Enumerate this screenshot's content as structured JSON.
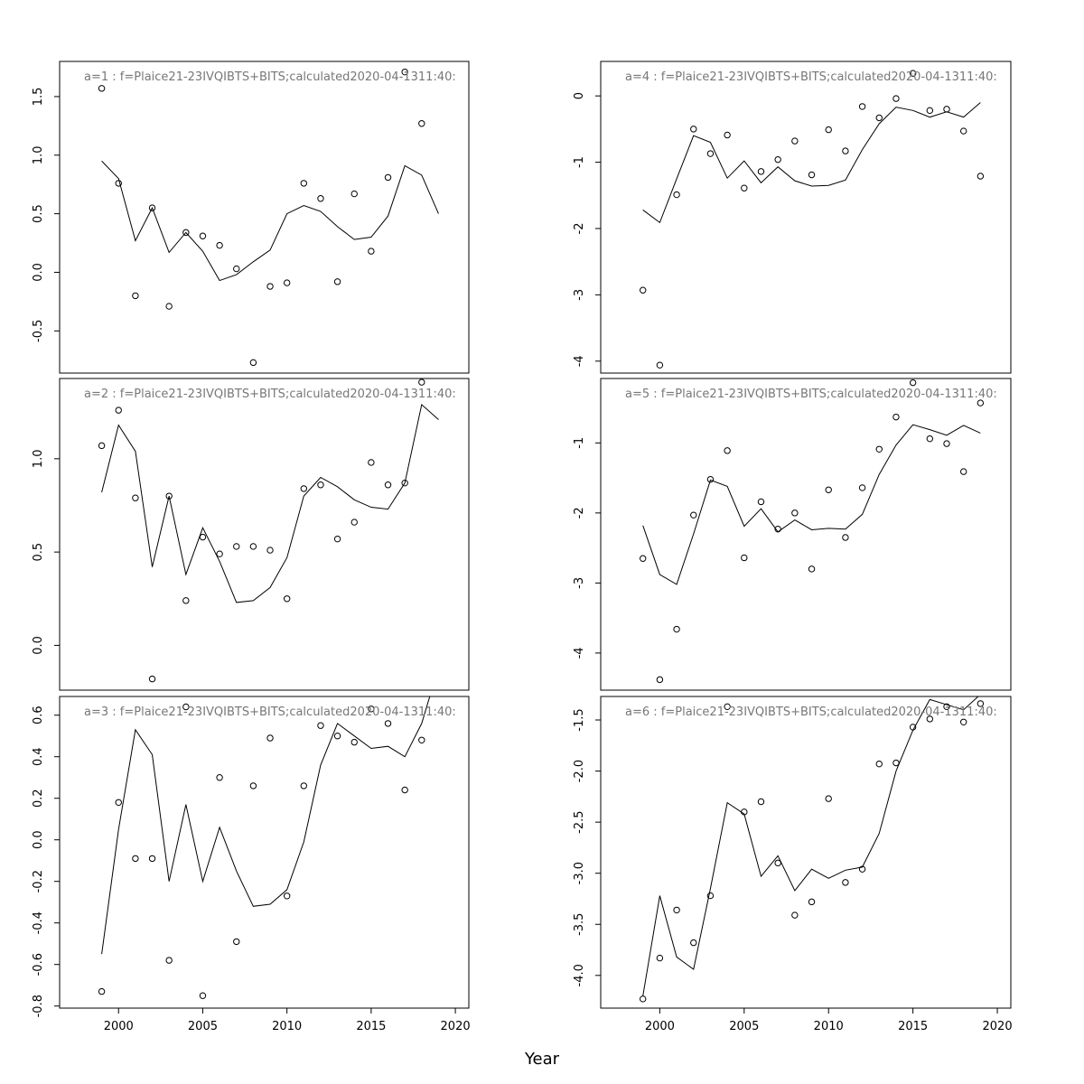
{
  "chart_data": {
    "type": "scatter",
    "xlabel": "Year",
    "xlim": [
      1996.5,
      2020.8
    ],
    "x_ticks": [
      2000,
      2005,
      2010,
      2015,
      2020
    ],
    "years": [
      1999,
      2000,
      2001,
      2002,
      2003,
      2004,
      2005,
      2006,
      2007,
      2008,
      2009,
      2010,
      2011,
      2012,
      2013,
      2014,
      2015,
      2016,
      2017,
      2018,
      2019
    ],
    "panels": [
      {
        "title": "a=1  :  f=Plaice21-23IVQIBTS+BITS;calculated2020-04-1311:40:",
        "ylim": [
          -0.86,
          1.8
        ],
        "y_ticks": [
          -0.5,
          0.0,
          0.5,
          1.0,
          1.5
        ],
        "y_tick_labels": [
          "-0.5",
          "0.0",
          "0.5",
          "1.0",
          "1.5"
        ],
        "points": [
          [
            1999,
            1.57
          ],
          [
            2000,
            0.76
          ],
          [
            2001,
            -0.2
          ],
          [
            2002,
            0.55
          ],
          [
            2003,
            -0.29
          ],
          [
            2004,
            0.34
          ],
          [
            2005,
            0.31
          ],
          [
            2006,
            0.23
          ],
          [
            2007,
            0.03
          ],
          [
            2008,
            -0.77
          ],
          [
            2009,
            -0.12
          ],
          [
            2010,
            -0.09
          ],
          [
            2011,
            0.76
          ],
          [
            2012,
            0.63
          ],
          [
            2013,
            -0.08
          ],
          [
            2014,
            0.67
          ],
          [
            2015,
            0.18
          ],
          [
            2016,
            0.81
          ],
          [
            2017,
            1.71
          ],
          [
            2018,
            1.27
          ]
        ],
        "line": [
          [
            1999,
            0.95
          ],
          [
            2000,
            0.8
          ],
          [
            2001,
            0.27
          ],
          [
            2002,
            0.55
          ],
          [
            2003,
            0.17
          ],
          [
            2004,
            0.34
          ],
          [
            2005,
            0.18
          ],
          [
            2006,
            -0.07
          ],
          [
            2007,
            -0.02
          ],
          [
            2008,
            0.09
          ],
          [
            2009,
            0.19
          ],
          [
            2010,
            0.5
          ],
          [
            2011,
            0.57
          ],
          [
            2012,
            0.52
          ],
          [
            2013,
            0.39
          ],
          [
            2014,
            0.28
          ],
          [
            2015,
            0.3
          ],
          [
            2016,
            0.48
          ],
          [
            2017,
            0.91
          ],
          [
            2018,
            0.83
          ],
          [
            2019,
            0.5
          ]
        ]
      },
      {
        "title": "a=2  :  f=Plaice21-23IVQIBTS+BITS;calculated2020-04-1311:40:",
        "ylim": [
          -0.24,
          1.43
        ],
        "y_ticks": [
          0.0,
          0.5,
          1.0
        ],
        "y_tick_labels": [
          "0.0",
          "0.5",
          "1.0"
        ],
        "points": [
          [
            1999,
            1.07
          ],
          [
            2000,
            1.26
          ],
          [
            2001,
            0.79
          ],
          [
            2002,
            -0.18
          ],
          [
            2003,
            0.8
          ],
          [
            2004,
            0.24
          ],
          [
            2005,
            0.58
          ],
          [
            2006,
            0.49
          ],
          [
            2007,
            0.53
          ],
          [
            2008,
            0.53
          ],
          [
            2009,
            0.51
          ],
          [
            2010,
            0.25
          ],
          [
            2011,
            0.84
          ],
          [
            2012,
            0.86
          ],
          [
            2013,
            0.57
          ],
          [
            2014,
            0.66
          ],
          [
            2015,
            0.98
          ],
          [
            2016,
            0.86
          ],
          [
            2017,
            0.87
          ],
          [
            2018,
            1.41
          ]
        ],
        "line": [
          [
            1999,
            0.82
          ],
          [
            2000,
            1.18
          ],
          [
            2001,
            1.04
          ],
          [
            2002,
            0.42
          ],
          [
            2003,
            0.8
          ],
          [
            2004,
            0.38
          ],
          [
            2005,
            0.63
          ],
          [
            2006,
            0.45
          ],
          [
            2007,
            0.23
          ],
          [
            2008,
            0.24
          ],
          [
            2009,
            0.31
          ],
          [
            2010,
            0.47
          ],
          [
            2011,
            0.8
          ],
          [
            2012,
            0.9
          ],
          [
            2013,
            0.85
          ],
          [
            2014,
            0.78
          ],
          [
            2015,
            0.74
          ],
          [
            2016,
            0.73
          ],
          [
            2017,
            0.87
          ],
          [
            2018,
            1.29
          ],
          [
            2019,
            1.21
          ]
        ]
      },
      {
        "title": "a=3  :  f=Plaice21-23IVQIBTS+BITS;calculated2020-04-1311:40:",
        "ylim": [
          -0.81,
          0.69
        ],
        "y_ticks": [
          -0.8,
          -0.6,
          -0.4,
          -0.2,
          0.0,
          0.2,
          0.4,
          0.6
        ],
        "y_tick_labels": [
          "-0.8",
          "-0.6",
          "-0.4",
          "-0.2",
          "0.0",
          "0.2",
          "0.4",
          "0.6"
        ],
        "points": [
          [
            1999,
            -0.73
          ],
          [
            2000,
            0.18
          ],
          [
            2001,
            -0.09
          ],
          [
            2002,
            -0.09
          ],
          [
            2003,
            -0.58
          ],
          [
            2004,
            0.64
          ],
          [
            2005,
            -0.75
          ],
          [
            2006,
            0.3
          ],
          [
            2007,
            -0.49
          ],
          [
            2008,
            0.26
          ],
          [
            2009,
            0.49
          ],
          [
            2010,
            -0.27
          ],
          [
            2011,
            0.26
          ],
          [
            2012,
            0.55
          ],
          [
            2013,
            0.5
          ],
          [
            2014,
            0.47
          ],
          [
            2015,
            0.63
          ],
          [
            2016,
            0.56
          ],
          [
            2017,
            0.24
          ],
          [
            2018,
            0.48
          ]
        ],
        "line": [
          [
            1999,
            -0.55
          ],
          [
            2000,
            0.05
          ],
          [
            2001,
            0.53
          ],
          [
            2002,
            0.41
          ],
          [
            2003,
            -0.2
          ],
          [
            2004,
            0.17
          ],
          [
            2005,
            -0.2
          ],
          [
            2006,
            0.06
          ],
          [
            2007,
            -0.15
          ],
          [
            2008,
            -0.32
          ],
          [
            2009,
            -0.31
          ],
          [
            2010,
            -0.24
          ],
          [
            2011,
            -0.01
          ],
          [
            2012,
            0.36
          ],
          [
            2013,
            0.56
          ],
          [
            2014,
            0.5
          ],
          [
            2015,
            0.44
          ],
          [
            2016,
            0.45
          ],
          [
            2017,
            0.4
          ],
          [
            2018,
            0.56
          ],
          [
            2019,
            0.83
          ]
        ]
      },
      {
        "title": "a=4  :  f=Plaice21-23IVQIBTS+BITS;calculated2020-04-1311:40:",
        "ylim": [
          -4.18,
          0.52
        ],
        "y_ticks": [
          -4,
          -3,
          -2,
          -1,
          0
        ],
        "y_tick_labels": [
          "-4",
          "-3",
          "-2",
          "-1",
          "0"
        ],
        "points": [
          [
            1999,
            -2.93
          ],
          [
            2000,
            -4.06
          ],
          [
            2001,
            -1.49
          ],
          [
            2002,
            -0.5
          ],
          [
            2003,
            -0.87
          ],
          [
            2004,
            -0.59
          ],
          [
            2005,
            -1.39
          ],
          [
            2006,
            -1.14
          ],
          [
            2007,
            -0.96
          ],
          [
            2008,
            -0.68
          ],
          [
            2009,
            -1.19
          ],
          [
            2010,
            -0.51
          ],
          [
            2011,
            -0.83
          ],
          [
            2012,
            -0.16
          ],
          [
            2013,
            -0.33
          ],
          [
            2014,
            -0.04
          ],
          [
            2015,
            0.34
          ],
          [
            2016,
            -0.22
          ],
          [
            2017,
            -0.2
          ],
          [
            2018,
            -0.53
          ],
          [
            2019,
            -1.21
          ]
        ],
        "line": [
          [
            1999,
            -1.72
          ],
          [
            2000,
            -1.91
          ],
          [
            2001,
            -1.25
          ],
          [
            2002,
            -0.6
          ],
          [
            2003,
            -0.7
          ],
          [
            2004,
            -1.24
          ],
          [
            2005,
            -0.98
          ],
          [
            2006,
            -1.31
          ],
          [
            2007,
            -1.07
          ],
          [
            2008,
            -1.28
          ],
          [
            2009,
            -1.36
          ],
          [
            2010,
            -1.35
          ],
          [
            2011,
            -1.27
          ],
          [
            2012,
            -0.81
          ],
          [
            2013,
            -0.42
          ],
          [
            2014,
            -0.17
          ],
          [
            2015,
            -0.22
          ],
          [
            2016,
            -0.32
          ],
          [
            2017,
            -0.24
          ],
          [
            2018,
            -0.32
          ],
          [
            2019,
            -0.1
          ]
        ]
      },
      {
        "title": "a=5  :  f=Plaice21-23IVQIBTS+BITS;calculated2020-04-1311:40:",
        "ylim": [
          -4.53,
          -0.08
        ],
        "y_ticks": [
          -4,
          -3,
          -2,
          -1
        ],
        "y_tick_labels": [
          "-4",
          "-3",
          "-2",
          "-1"
        ],
        "points": [
          [
            1999,
            -2.65
          ],
          [
            2000,
            -4.38
          ],
          [
            2001,
            -3.66
          ],
          [
            2002,
            -2.03
          ],
          [
            2003,
            -1.52
          ],
          [
            2004,
            -1.11
          ],
          [
            2005,
            -2.64
          ],
          [
            2006,
            -1.84
          ],
          [
            2007,
            -2.23
          ],
          [
            2008,
            -2.0
          ],
          [
            2009,
            -2.8
          ],
          [
            2010,
            -1.67
          ],
          [
            2011,
            -2.35
          ],
          [
            2012,
            -1.64
          ],
          [
            2013,
            -1.09
          ],
          [
            2014,
            -0.63
          ],
          [
            2015,
            -0.14
          ],
          [
            2016,
            -0.94
          ],
          [
            2017,
            -1.01
          ],
          [
            2018,
            -1.41
          ],
          [
            2019,
            -0.43
          ]
        ],
        "line": [
          [
            1999,
            -2.18
          ],
          [
            2000,
            -2.88
          ],
          [
            2001,
            -3.02
          ],
          [
            2002,
            -2.3
          ],
          [
            2003,
            -1.53
          ],
          [
            2004,
            -1.62
          ],
          [
            2005,
            -2.19
          ],
          [
            2006,
            -1.94
          ],
          [
            2007,
            -2.27
          ],
          [
            2008,
            -2.1
          ],
          [
            2009,
            -2.24
          ],
          [
            2010,
            -2.22
          ],
          [
            2011,
            -2.23
          ],
          [
            2012,
            -2.02
          ],
          [
            2013,
            -1.45
          ],
          [
            2014,
            -1.03
          ],
          [
            2015,
            -0.74
          ],
          [
            2016,
            -0.81
          ],
          [
            2017,
            -0.89
          ],
          [
            2018,
            -0.75
          ],
          [
            2019,
            -0.86
          ]
        ]
      },
      {
        "title": "a=6  :  f=Plaice21-23IVQIBTS+BITS;calculated2020-04-1311:40:",
        "ylim": [
          -4.32,
          -1.27
        ],
        "y_ticks": [
          -4.0,
          -3.5,
          -3.0,
          -2.5,
          -2.0,
          -1.5
        ],
        "y_tick_labels": [
          "-4.0",
          "-3.5",
          "-3.0",
          "-2.5",
          "-2.0",
          "-1.5"
        ],
        "points": [
          [
            1999,
            -4.23
          ],
          [
            2000,
            -3.83
          ],
          [
            2001,
            -3.36
          ],
          [
            2002,
            -3.68
          ],
          [
            2003,
            -3.22
          ],
          [
            2004,
            -1.37
          ],
          [
            2005,
            -2.4
          ],
          [
            2006,
            -2.3
          ],
          [
            2007,
            -2.9
          ],
          [
            2008,
            -3.41
          ],
          [
            2009,
            -3.28
          ],
          [
            2010,
            -2.27
          ],
          [
            2011,
            -3.09
          ],
          [
            2012,
            -2.96
          ],
          [
            2013,
            -1.93
          ],
          [
            2014,
            -1.92
          ],
          [
            2015,
            -1.57
          ],
          [
            2016,
            -1.49
          ],
          [
            2017,
            -1.37
          ],
          [
            2018,
            -1.52
          ],
          [
            2019,
            -1.34
          ]
        ],
        "line": [
          [
            1999,
            -4.2
          ],
          [
            2000,
            -3.22
          ],
          [
            2001,
            -3.82
          ],
          [
            2002,
            -3.94
          ],
          [
            2003,
            -3.15
          ],
          [
            2004,
            -2.31
          ],
          [
            2005,
            -2.42
          ],
          [
            2006,
            -3.03
          ],
          [
            2007,
            -2.83
          ],
          [
            2008,
            -3.17
          ],
          [
            2009,
            -2.96
          ],
          [
            2010,
            -3.05
          ],
          [
            2011,
            -2.97
          ],
          [
            2012,
            -2.94
          ],
          [
            2013,
            -2.61
          ],
          [
            2014,
            -2.0
          ],
          [
            2015,
            -1.6
          ],
          [
            2016,
            -1.3
          ],
          [
            2017,
            -1.35
          ],
          [
            2018,
            -1.4
          ],
          [
            2019,
            -1.25
          ]
        ]
      }
    ]
  }
}
